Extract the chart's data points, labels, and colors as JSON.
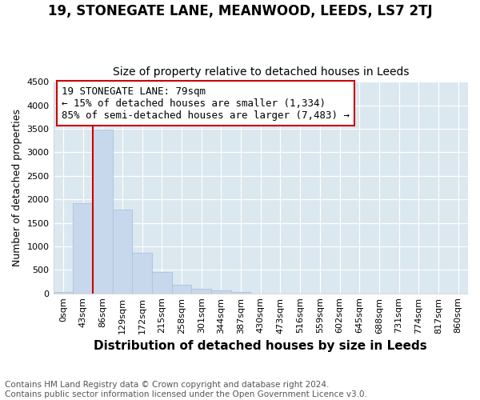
{
  "title1": "19, STONEGATE LANE, MEANWOOD, LEEDS, LS7 2TJ",
  "title2": "Size of property relative to detached houses in Leeds",
  "xlabel": "Distribution of detached houses by size in Leeds",
  "ylabel": "Number of detached properties",
  "footnote1": "Contains HM Land Registry data © Crown copyright and database right 2024.",
  "footnote2": "Contains public sector information licensed under the Open Government Licence v3.0.",
  "annotation_line1": "19 STONEGATE LANE: 79sqm",
  "annotation_line2": "← 15% of detached houses are smaller (1,334)",
  "annotation_line3": "85% of semi-detached houses are larger (7,483) →",
  "bar_categories": [
    "0sqm",
    "43sqm",
    "86sqm",
    "129sqm",
    "172sqm",
    "215sqm",
    "258sqm",
    "301sqm",
    "344sqm",
    "387sqm",
    "430sqm",
    "473sqm",
    "516sqm",
    "559sqm",
    "602sqm",
    "645sqm",
    "688sqm",
    "731sqm",
    "774sqm",
    "817sqm",
    "860sqm"
  ],
  "bar_values": [
    30,
    1920,
    3480,
    1780,
    870,
    450,
    175,
    90,
    55,
    30,
    0,
    0,
    0,
    0,
    0,
    0,
    0,
    0,
    0,
    0,
    0
  ],
  "bar_color": "#c8d8ec",
  "bar_edge_color": "#b0c8e0",
  "ylim": [
    0,
    4500
  ],
  "yticks": [
    0,
    500,
    1000,
    1500,
    2000,
    2500,
    3000,
    3500,
    4000,
    4500
  ],
  "vline_index": 2,
  "annotation_box_color": "#ffffff",
  "annotation_box_edge": "#cc0000",
  "vline_color": "#cc0000",
  "fig_background": "#ffffff",
  "plot_background": "#dce8f0",
  "title1_fontsize": 12,
  "title2_fontsize": 10,
  "xlabel_fontsize": 11,
  "ylabel_fontsize": 9,
  "annotation_fontsize": 9,
  "footnote_fontsize": 7.5,
  "grid_color": "#ffffff",
  "tick_fontsize": 8
}
